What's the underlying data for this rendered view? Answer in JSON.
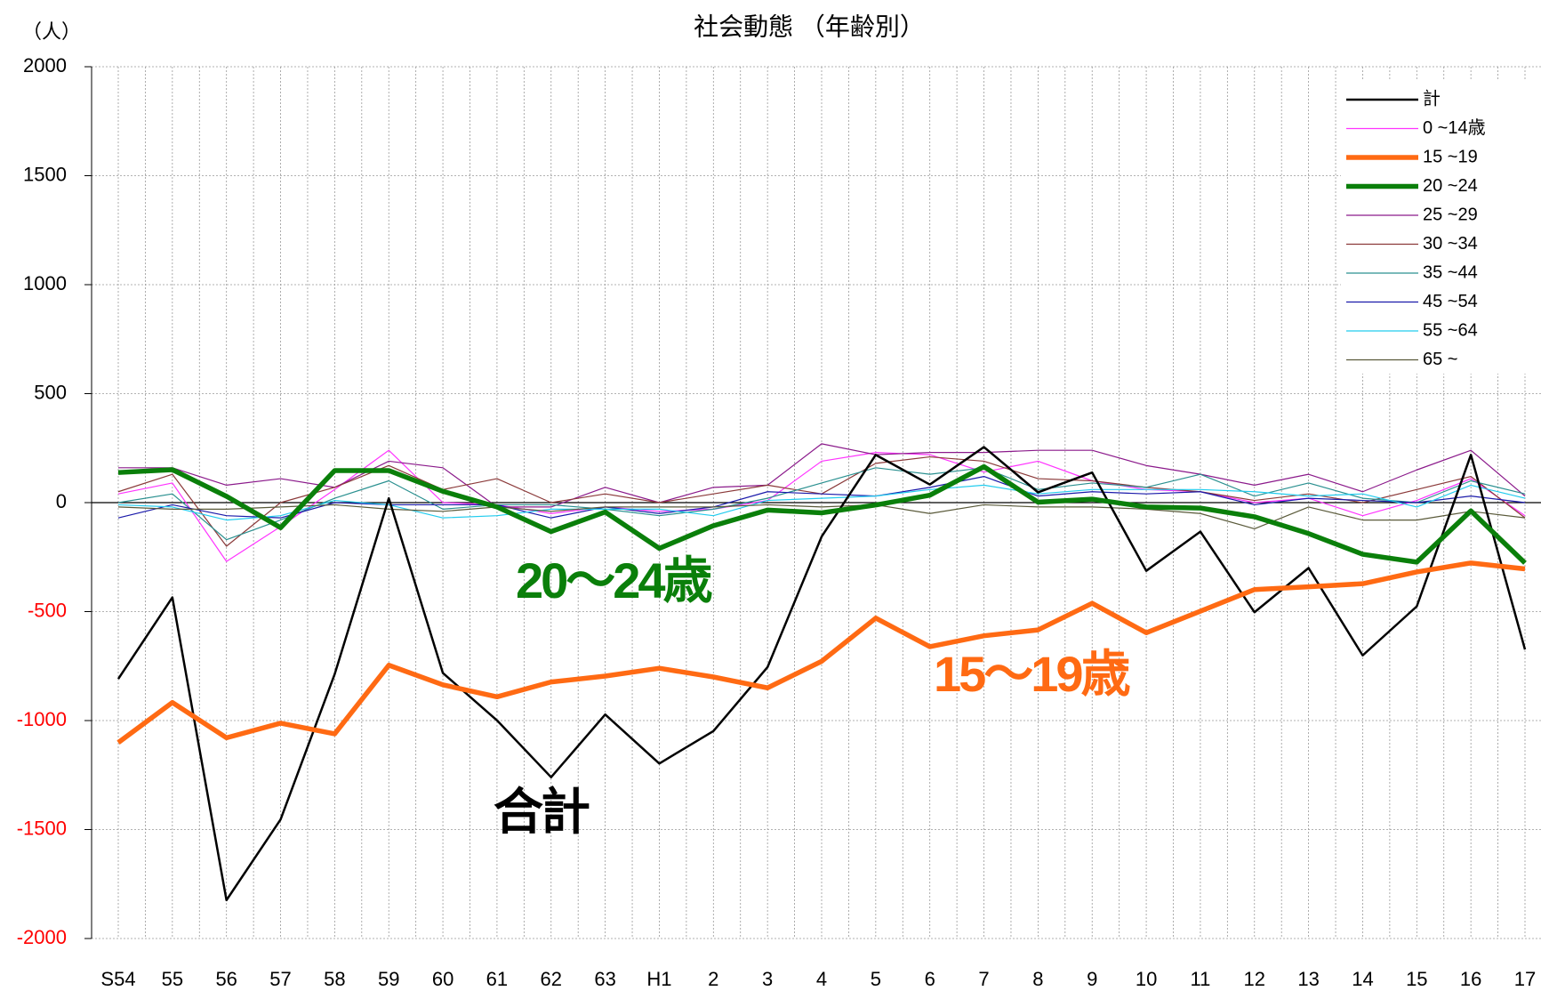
{
  "chart_data": {
    "type": "line",
    "title": "社会動態 （年齢別）",
    "y_unit_label": "（人）",
    "categories": [
      "S54",
      "55",
      "56",
      "57",
      "58",
      "59",
      "60",
      "61",
      "62",
      "63",
      "H1",
      "2",
      "3",
      "4",
      "5",
      "6",
      "7",
      "8",
      "9",
      "10",
      "11",
      "12",
      "13",
      "14",
      "15",
      "16",
      "17"
    ],
    "ylim": [
      -2000,
      2000
    ],
    "yticks": [
      -2000,
      -1500,
      -1000,
      -500,
      0,
      500,
      1000,
      1500,
      2000
    ],
    "negative_tick_color": "#ff0000",
    "grid": true,
    "legend": "top-right",
    "series": [
      {
        "name": "計",
        "color": "#000000",
        "values": [
          -809,
          -435,
          -1824,
          -1454,
          -787,
          20,
          -782,
          -999,
          -1260,
          -972,
          -1197,
          -1048,
          -755,
          -156,
          219,
          83,
          255,
          47,
          138,
          -313,
          -133,
          -503,
          -300,
          -701,
          -476,
          219,
          -674
        ]
      },
      {
        "name": "0 ~14歳",
        "color": "#ff33ff",
        "values": [
          40,
          90,
          -270,
          -110,
          60,
          240,
          0,
          -10,
          -50,
          -20,
          -40,
          -30,
          10,
          190,
          230,
          220,
          140,
          190,
          100,
          60,
          50,
          0,
          20,
          -60,
          10,
          110,
          -60
        ]
      },
      {
        "name": "15 ~19",
        "color": "#ff6a13",
        "values": [
          -1101,
          -917,
          -1079,
          -1012,
          -1061,
          -746,
          -836,
          -891,
          -823,
          -796,
          -760,
          -800,
          -850,
          -728,
          -530,
          -661,
          -611,
          -584,
          -462,
          -597,
          -498,
          -399,
          -386,
          -372,
          -318,
          -277,
          -304
        ]
      },
      {
        "name": "20 ~24",
        "color": "#0a7f0a",
        "values": [
          138,
          151,
          29,
          -115,
          147,
          147,
          52,
          -20,
          -133,
          -43,
          -210,
          -106,
          -34,
          -47,
          -11,
          34,
          165,
          2,
          16,
          -20,
          -25,
          -65,
          -142,
          -237,
          -273,
          -38,
          -277
        ]
      },
      {
        "name": "25 ~29",
        "color": "#8b1a8b",
        "values": [
          160,
          160,
          80,
          110,
          70,
          190,
          160,
          -20,
          -20,
          70,
          0,
          70,
          80,
          270,
          220,
          230,
          230,
          240,
          240,
          170,
          130,
          80,
          130,
          50,
          150,
          240,
          30
        ]
      },
      {
        "name": "30 ~34",
        "color": "#8b3a3a",
        "values": [
          50,
          130,
          -200,
          0,
          70,
          170,
          60,
          110,
          0,
          40,
          0,
          40,
          80,
          40,
          180,
          210,
          190,
          110,
          100,
          70,
          50,
          10,
          40,
          0,
          60,
          120,
          -70
        ]
      },
      {
        "name": "35 ~44",
        "color": "#2a9090",
        "values": [
          0,
          40,
          -170,
          -80,
          20,
          100,
          -30,
          -10,
          -10,
          -30,
          -60,
          -30,
          20,
          90,
          160,
          130,
          160,
          60,
          90,
          70,
          130,
          30,
          90,
          20,
          0,
          100,
          40
        ]
      },
      {
        "name": "45 ~54",
        "color": "#1a1aaa",
        "values": [
          -70,
          -10,
          -60,
          -70,
          0,
          -10,
          -10,
          -10,
          -70,
          -20,
          -50,
          -20,
          50,
          40,
          30,
          70,
          120,
          30,
          50,
          40,
          50,
          -10,
          20,
          10,
          0,
          30,
          0
        ]
      },
      {
        "name": "55 ~64",
        "color": "#22ccee",
        "values": [
          -10,
          -20,
          -80,
          -60,
          10,
          -10,
          -70,
          -60,
          -30,
          -30,
          -30,
          -60,
          10,
          20,
          30,
          60,
          80,
          40,
          60,
          60,
          60,
          50,
          30,
          40,
          -20,
          80,
          20
        ]
      },
      {
        "name": "65 ~",
        "color": "#5a5a3a",
        "values": [
          -20,
          -30,
          -30,
          -20,
          -10,
          -30,
          -40,
          -20,
          -40,
          -20,
          -20,
          -20,
          -10,
          -20,
          -10,
          -50,
          -10,
          -20,
          -20,
          -30,
          -50,
          -120,
          -20,
          -80,
          -80,
          -40,
          -70
        ]
      }
    ],
    "annotations": [
      {
        "text": "20～24歳",
        "color": "#0a7f0a"
      },
      {
        "text": "15～19歳",
        "color": "#ff6a13"
      },
      {
        "text": "合計",
        "color": "#000000"
      }
    ]
  }
}
